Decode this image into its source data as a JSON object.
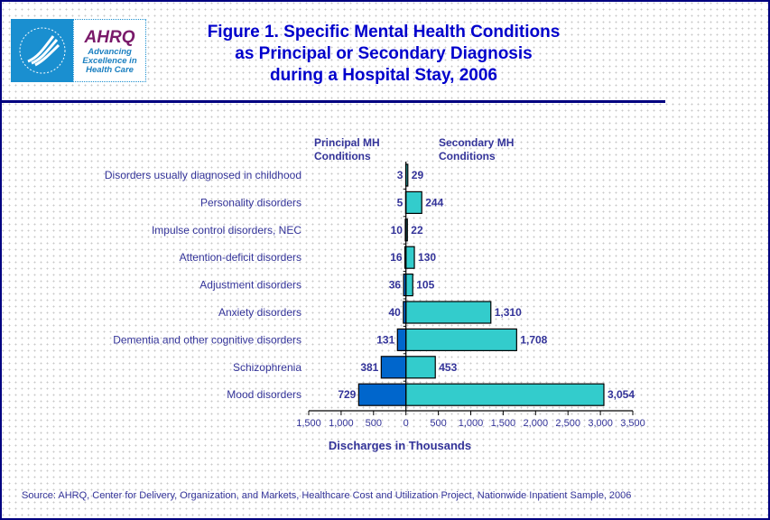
{
  "logo": {
    "brand": "AHRQ",
    "tagline": [
      "Advancing",
      "Excellence in",
      "Health Care"
    ]
  },
  "title": [
    "Figure 1. Specific Mental Health Conditions",
    "as Principal or Secondary Diagnosis",
    "during a Hospital Stay, 2006"
  ],
  "source": "Source: AHRQ, Center for Delivery, Organization, and Markets, Healthcare Cost and Utilization Project, Nationwide Inpatient Sample, 2006",
  "chart_data": {
    "type": "bar",
    "orientation": "horizontal-diverging",
    "categories": [
      "Disorders usually diagnosed in childhood",
      "Personality disorders",
      "Impulse control disorders, NEC",
      "Attention-deficit disorders",
      "Adjustment disorders",
      "Anxiety disorders",
      "Dementia and other cognitive disorders",
      "Schizophrenia",
      "Mood disorders"
    ],
    "series": [
      {
        "name": "Principal MH Conditions",
        "values": [
          3,
          5,
          10,
          16,
          36,
          40,
          131,
          381,
          729
        ],
        "labels": [
          "3",
          "5",
          "10",
          "16",
          "36",
          "40",
          "131",
          "381",
          "729"
        ],
        "color": "#0066cc"
      },
      {
        "name": "Secondary MH Conditions",
        "values": [
          29,
          244,
          22,
          130,
          105,
          1310,
          1708,
          453,
          3054
        ],
        "labels": [
          "29",
          "244",
          "22",
          "130",
          "105",
          "1,310",
          "1,708",
          "453",
          "3,054"
        ],
        "color": "#33cccc"
      }
    ],
    "series_headers": [
      [
        "Principal MH",
        "Conditions"
      ],
      [
        "Secondary MH",
        "Conditions"
      ]
    ],
    "xlabel": "Discharges in Thousands",
    "xlim": [
      -1500,
      3500
    ],
    "xticks": [
      -1500,
      -1000,
      -500,
      0,
      500,
      1000,
      1500,
      2000,
      2500,
      3000,
      3500
    ],
    "xtick_labels": [
      "1,500",
      "1,000",
      "500",
      "0",
      "500",
      "1,000",
      "1,500",
      "2,000",
      "2,500",
      "3,000",
      "3,500"
    ],
    "grid": false
  }
}
